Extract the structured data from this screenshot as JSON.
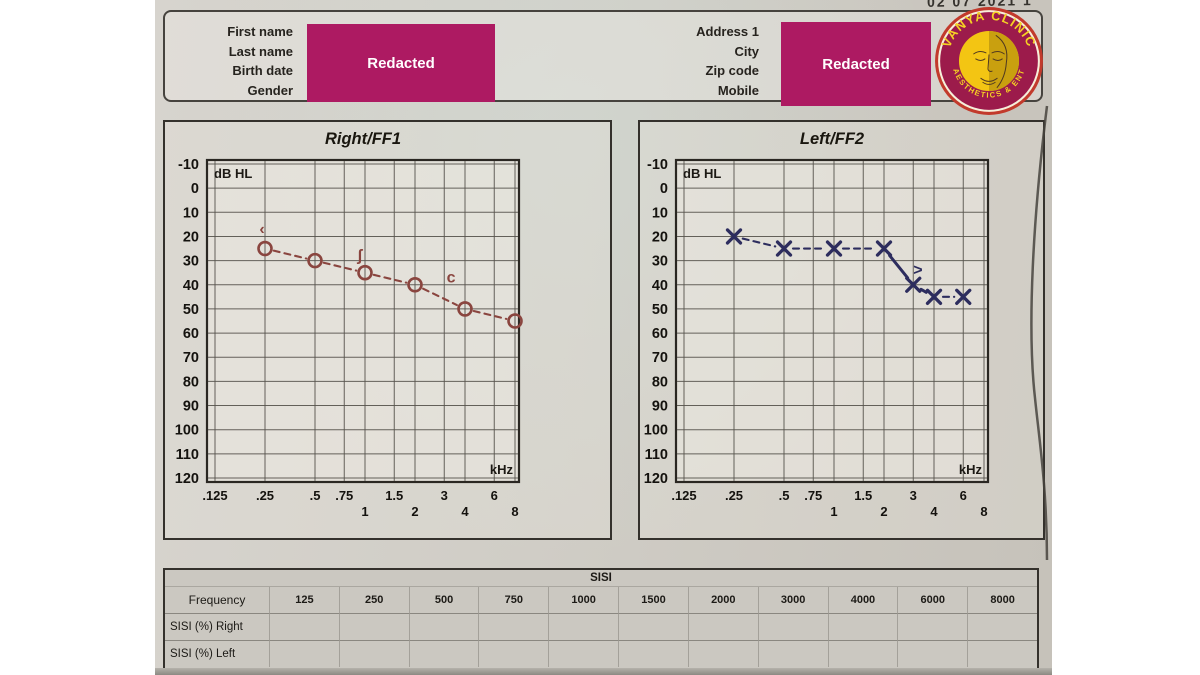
{
  "date_fragment": "02 07 2021 1",
  "header": {
    "left_fields": [
      "First name",
      "Last name",
      "Birth date",
      "Gender"
    ],
    "right_fields": [
      "Address 1",
      "City",
      "Zip code",
      "Mobile"
    ],
    "redacted_label": "Redacted",
    "redacted_color": "#ad1a62"
  },
  "logo": {
    "name_top": "VANYA CLINIC",
    "name_bottom": "AESTHETICS & ENT",
    "colors": {
      "ring": "#c23a2c",
      "rim": "#f6efdb",
      "band": "#9c1b4b",
      "center": "#f3c513",
      "center_shade": "#c9a00f",
      "text": "#f5d224"
    }
  },
  "chart_data": [
    {
      "type": "line",
      "title": "Right/FF1",
      "corner_label": "dB HL",
      "axis_unit": "kHz",
      "ylim": [
        -10,
        120
      ],
      "y_step": 10,
      "x_ticks": [
        {
          "label": ".125",
          "f": 0.125,
          "row": 0
        },
        {
          "label": ".25",
          "f": 0.25,
          "row": 0
        },
        {
          "label": ".5",
          "f": 0.5,
          "row": 0
        },
        {
          "label": ".75",
          "f": 0.75,
          "row": 0
        },
        {
          "label": "1",
          "f": 1,
          "row": 1
        },
        {
          "label": "1.5",
          "f": 1.5,
          "row": 0
        },
        {
          "label": "2",
          "f": 2,
          "row": 1
        },
        {
          "label": "3",
          "f": 3,
          "row": 0
        },
        {
          "label": "4",
          "f": 4,
          "row": 1
        },
        {
          "label": "6",
          "f": 6,
          "row": 0
        },
        {
          "label": "8",
          "f": 8,
          "row": 1
        }
      ],
      "series": [
        {
          "name": "right-ear-air-conduction",
          "marker": "circle",
          "color": "#8a453f",
          "x_khz": [
            0.25,
            0.5,
            1,
            2,
            4,
            8
          ],
          "y_db": [
            25,
            30,
            35,
            40,
            50,
            55
          ],
          "solid_segments": []
        }
      ],
      "annotations": [
        {
          "f": 0.24,
          "db": 19,
          "text": "‹"
        },
        {
          "f": 0.93,
          "db": 30,
          "text": "ʃ"
        },
        {
          "f": 3.3,
          "db": 39,
          "text": "c"
        }
      ]
    },
    {
      "type": "line",
      "title": "Left/FF2",
      "corner_label": "dB HL",
      "axis_unit": "kHz",
      "ylim": [
        -10,
        120
      ],
      "y_step": 10,
      "x_ticks": [
        {
          "label": ".125",
          "f": 0.125,
          "row": 0
        },
        {
          "label": ".25",
          "f": 0.25,
          "row": 0
        },
        {
          "label": ".5",
          "f": 0.5,
          "row": 0
        },
        {
          "label": ".75",
          "f": 0.75,
          "row": 0
        },
        {
          "label": "1",
          "f": 1,
          "row": 1
        },
        {
          "label": "1.5",
          "f": 1.5,
          "row": 0
        },
        {
          "label": "2",
          "f": 2,
          "row": 1
        },
        {
          "label": "3",
          "f": 3,
          "row": 0
        },
        {
          "label": "4",
          "f": 4,
          "row": 1
        },
        {
          "label": "6",
          "f": 6,
          "row": 0
        },
        {
          "label": "8",
          "f": 8,
          "row": 1
        }
      ],
      "series": [
        {
          "name": "left-ear-air-conduction",
          "marker": "x",
          "color": "#2d2d5e",
          "x_khz": [
            0.25,
            0.5,
            1,
            2,
            3,
            4,
            6
          ],
          "y_db": [
            20,
            25,
            25,
            25,
            40,
            45,
            45
          ],
          "solid_segments": [
            3,
            4
          ]
        }
      ],
      "annotations": [
        {
          "f": 3.2,
          "db": 36,
          "text": ">"
        }
      ]
    }
  ],
  "sisi_table": {
    "title": "SISI",
    "header_label": "Frequency",
    "frequencies": [
      "125",
      "250",
      "500",
      "750",
      "1000",
      "1500",
      "2000",
      "3000",
      "4000",
      "6000",
      "8000"
    ],
    "rows": [
      {
        "label": "SISI (%) Right",
        "values": [
          "",
          "",
          "",
          "",
          "",
          "",
          "",
          "",
          "",
          "",
          ""
        ]
      },
      {
        "label": "SISI (%) Left",
        "values": [
          "",
          "",
          "",
          "",
          "",
          "",
          "",
          "",
          "",
          "",
          ""
        ]
      }
    ]
  }
}
